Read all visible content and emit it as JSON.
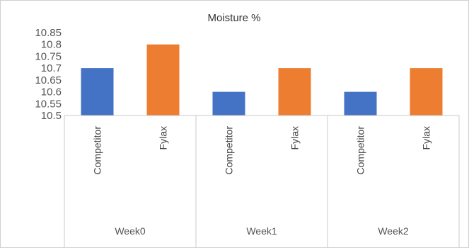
{
  "chart_data": {
    "type": "bar",
    "title": "Moisture %",
    "groups": [
      {
        "label": "Week0",
        "categories": [
          "Competitor",
          "Fylax"
        ],
        "values": [
          10.7,
          10.8
        ]
      },
      {
        "label": "Week1",
        "categories": [
          "Competitor",
          "Fylax"
        ],
        "values": [
          10.6,
          10.7
        ]
      },
      {
        "label": "Week2",
        "categories": [
          "Competitor",
          "Fylax"
        ],
        "values": [
          10.6,
          10.7
        ]
      }
    ],
    "y_ticks": [
      "10.5",
      "10.55",
      "10.6",
      "10.65",
      "10.7",
      "10.75",
      "10.8",
      "10.85"
    ],
    "ylim": [
      10.5,
      10.85
    ],
    "grid": false,
    "colors": {
      "Competitor": "#4472c4",
      "Fylax": "#ed7d31"
    }
  }
}
